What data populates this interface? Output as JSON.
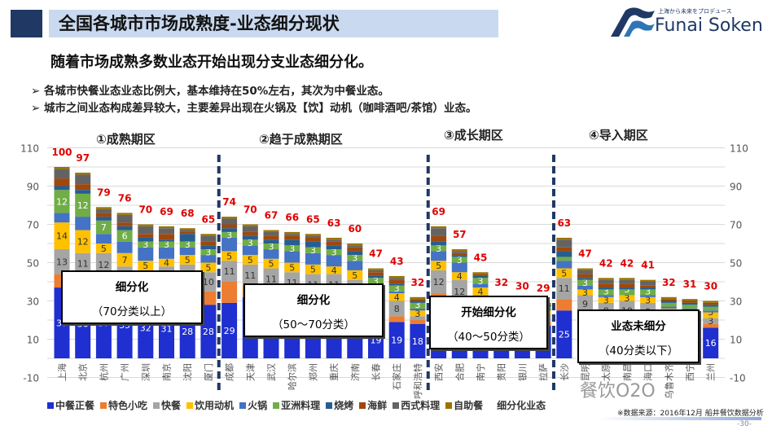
{
  "header": {
    "title": "全国各城市市场成熟度-业态细分现状",
    "subtitle": "随着市场成熟多数业态开始出现分支业态细分化。",
    "bullets": [
      "各城市快餐业态业态比例大，基本维持在50%左右，其次为中餐业态。",
      "城市之间业态构成差异较大，主要差异出现在火锅及【饮】动机（咖啡酒吧/茶馆）业态。"
    ],
    "bullet_icon": "arrow-bullet-icon"
  },
  "logo": {
    "name": "Funai Soken",
    "tagline": "上海から未来をプロデュース"
  },
  "regions": [
    "①成熟期区",
    "②趋于成熟期区",
    "③成长期区",
    "④导入期区"
  ],
  "boxes": [
    {
      "line1": "细分化",
      "line2": "（70分类以上）"
    },
    {
      "line1": "细分化",
      "line2": "（50～70分类）"
    },
    {
      "line1": "开始细分化",
      "line2": "（40～50分类）"
    },
    {
      "line1": "业态未细分",
      "line2": "（40分类以下）"
    }
  ],
  "footer": {
    "source": "※数据来源：2016年12月 船井餐饮数据分析",
    "page": "-30-",
    "watermark": "餐饮O2O"
  },
  "chart_data": {
    "type": "bar",
    "stacked": true,
    "categories": [
      "上海",
      "北京",
      "杭州",
      "广州",
      "深圳",
      "南京",
      "沈阳",
      "厦门",
      "成都",
      "天津",
      "武汉",
      "哈尔滨",
      "郑州",
      "重庆",
      "济南",
      "长春",
      "石家庄",
      "呼和浩特",
      "西安",
      "合肥",
      "南宁",
      "贵阳",
      "银川",
      "拉萨",
      "长沙",
      "昆明",
      "太原",
      "南昌",
      "海口",
      "乌鲁木齐",
      "西宁",
      "兰州"
    ],
    "totals": [
      100,
      97,
      79,
      76,
      70,
      69,
      68,
      65,
      74,
      70,
      67,
      66,
      65,
      63,
      60,
      47,
      43,
      32,
      69,
      57,
      45,
      32,
      30,
      29,
      63,
      47,
      42,
      42,
      41,
      32,
      31,
      30
    ],
    "series": [
      {
        "name": "中餐正餐",
        "color": "#1f2fd0",
        "values": [
          37,
          36,
          37,
          35,
          32,
          31,
          28,
          28,
          29,
          32,
          31,
          30,
          30,
          29,
          25,
          19,
          19,
          18,
          29,
          26,
          22,
          18,
          17,
          17,
          25,
          21,
          19,
          18,
          18,
          17,
          17,
          16
        ]
      },
      {
        "name": "特色小吃",
        "color": "#ed7d31",
        "values": [
          7,
          8,
          6,
          5,
          5,
          6,
          6,
          7,
          11,
          6,
          5,
          4,
          3,
          4,
          5,
          3,
          3,
          2,
          5,
          3,
          3,
          2,
          2,
          2,
          6,
          3,
          2,
          2,
          2,
          2,
          2,
          2
        ]
      },
      {
        "name": "快餐",
        "color": "#a5a5a5",
        "values": [
          13,
          11,
          12,
          8,
          9,
          11,
          15,
          10,
          11,
          11,
          11,
          11,
          11,
          11,
          11,
          10,
          8,
          2,
          12,
          12,
          8,
          5,
          5,
          4,
          11,
          9,
          8,
          10,
          9,
          5,
          4,
          3
        ]
      },
      {
        "name": "饮用动机",
        "color": "#ffc000",
        "values": [
          14,
          12,
          5,
          7,
          5,
          4,
          5,
          5,
          5,
          5,
          5,
          5,
          5,
          4,
          5,
          4,
          4,
          3,
          5,
          4,
          4,
          2,
          2,
          2,
          5,
          3,
          3,
          3,
          3,
          2,
          2,
          3
        ]
      },
      {
        "name": "火锅",
        "color": "#4472c4",
        "values": [
          5,
          7,
          5,
          6,
          7,
          6,
          4,
          4,
          7,
          5,
          5,
          6,
          6,
          6,
          5,
          3,
          1,
          1,
          5,
          5,
          2,
          1,
          1,
          1,
          4,
          2,
          1,
          0,
          1,
          1,
          1,
          1
        ]
      },
      {
        "name": "亚洲料理",
        "color": "#70ad47",
        "values": [
          12,
          12,
          7,
          6,
          3,
          3,
          3,
          3,
          3,
          3,
          3,
          3,
          3,
          3,
          3,
          3,
          3,
          3,
          3,
          3,
          3,
          2,
          1,
          1,
          2,
          3,
          3,
          3,
          3,
          2,
          2,
          2
        ]
      },
      {
        "name": "烧烤",
        "color": "#255e91",
        "values": [
          2,
          2,
          2,
          2,
          2,
          1,
          4,
          2,
          2,
          2,
          2,
          3,
          3,
          2,
          2,
          1,
          1,
          1,
          2,
          1,
          1,
          1,
          1,
          1,
          3,
          1,
          1,
          1,
          1,
          1,
          1,
          1
        ]
      },
      {
        "name": "海鲜",
        "color": "#9e480e",
        "values": [
          4,
          3,
          2,
          2,
          2,
          3,
          1,
          2,
          2,
          2,
          2,
          2,
          2,
          2,
          2,
          2,
          2,
          1,
          3,
          1,
          1,
          0,
          0,
          0,
          2,
          2,
          2,
          2,
          1,
          1,
          1,
          1
        ]
      },
      {
        "name": "西式料理",
        "color": "#636363",
        "values": [
          5,
          5,
          2,
          4,
          4,
          3,
          1,
          3,
          3,
          3,
          2,
          1,
          1,
          1,
          1,
          1,
          1,
          0,
          4,
          1,
          0,
          0,
          0,
          0,
          4,
          2,
          2,
          2,
          2,
          0,
          0,
          0
        ]
      },
      {
        "name": "自助餐",
        "color": "#997300",
        "values": [
          1,
          1,
          1,
          1,
          1,
          1,
          1,
          1,
          1,
          1,
          1,
          1,
          1,
          1,
          1,
          1,
          1,
          1,
          1,
          1,
          1,
          1,
          1,
          1,
          1,
          1,
          1,
          1,
          1,
          1,
          1,
          1
        ]
      }
    ],
    "extra_legend": "细分化业态",
    "labeled_series": [
      "中餐正餐",
      "快餐",
      "饮用动机",
      "亚洲料理"
    ],
    "ylim": [
      -10,
      110
    ],
    "yticks": [
      110,
      90,
      70,
      50,
      30,
      10,
      -10
    ],
    "grid": true,
    "legend": "bottom",
    "total_label_color": "#e00000",
    "separator_after": [
      "厦门",
      "呼和浩特",
      "拉萨"
    ]
  }
}
